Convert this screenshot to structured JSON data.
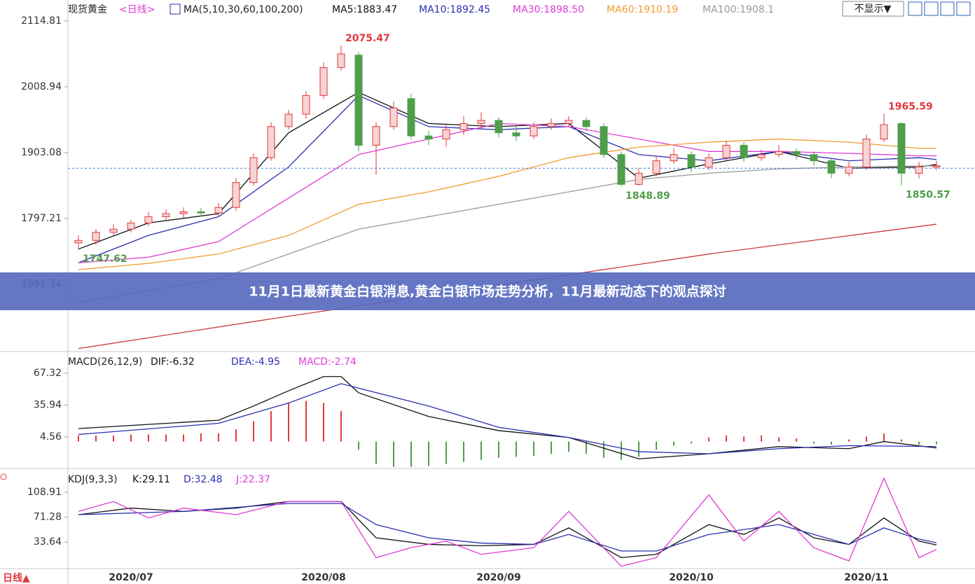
{
  "header": {
    "symbol": "现货黄金",
    "period": "<日线>",
    "indicator": "MA(5,10,30,60,100,200)"
  },
  "toolbar": {
    "hide_button": "不显示▼"
  },
  "footer": {
    "period_switch": "日线▲"
  },
  "banner": "11月1日最新黄金白银消息,黄金白银市场走势分析，11月最新动态下的观点探讨",
  "chart_data": [
    {
      "type": "candlestick",
      "categories": [
        null,
        null,
        null,
        "2020/07",
        null,
        null,
        null,
        null,
        null,
        null,
        null,
        null,
        null,
        null,
        "2020/08",
        null,
        null,
        null,
        null,
        null,
        null,
        null,
        null,
        null,
        "2020/09",
        null,
        null,
        null,
        null,
        null,
        null,
        null,
        null,
        null,
        null,
        "2020/10",
        null,
        null,
        null,
        null,
        null,
        null,
        null,
        null,
        null,
        "2020/11",
        null,
        null,
        null,
        null
      ],
      "open": [
        1758,
        1762,
        1775,
        1780,
        1790,
        1800,
        1805,
        1808,
        1806,
        1815,
        1855,
        1895,
        1945,
        1965,
        1995,
        2040,
        2060,
        1915,
        1945,
        1990,
        1930,
        1925,
        1940,
        1950,
        1955,
        1935,
        1930,
        1945,
        1950,
        1955,
        1945,
        1900,
        1852,
        1870,
        1890,
        1900,
        1880,
        1895,
        1915,
        1895,
        1900,
        1905,
        1900,
        1890,
        1870,
        1880,
        1925,
        1950,
        1870,
        1880
      ],
      "high": [
        1770,
        1780,
        1788,
        1795,
        1808,
        1812,
        1815,
        1814,
        1822,
        1862,
        1902,
        1952,
        1972,
        2002,
        2048,
        2075.47,
        2065,
        1952,
        1985,
        1998,
        1938,
        1948,
        1962,
        1968,
        1960,
        1945,
        1952,
        1958,
        1962,
        1960,
        1950,
        1905,
        1878,
        1898,
        1910,
        1905,
        1902,
        1922,
        1920,
        1908,
        1915,
        1910,
        1905,
        1895,
        1888,
        1932,
        1965.59,
        1952,
        1888,
        1890
      ],
      "low": [
        1747.62,
        1755,
        1770,
        1775,
        1785,
        1795,
        1798,
        1800,
        1800,
        1810,
        1850,
        1890,
        1940,
        1958,
        1990,
        2035,
        1905,
        1868,
        1940,
        1925,
        1915,
        1912,
        1932,
        1942,
        1928,
        1922,
        1925,
        1940,
        1945,
        1938,
        1895,
        1848.89,
        1850,
        1865,
        1885,
        1872,
        1875,
        1890,
        1888,
        1890,
        1895,
        1892,
        1882,
        1862,
        1865,
        1875,
        1920,
        1850.57,
        1862,
        1875
      ],
      "close": [
        1762,
        1775,
        1780,
        1790,
        1800,
        1805,
        1808,
        1806,
        1815,
        1855,
        1895,
        1945,
        1965,
        1995,
        2040,
        2062,
        1915,
        1945,
        1975,
        1930,
        1925,
        1940,
        1950,
        1955,
        1935,
        1930,
        1945,
        1950,
        1955,
        1945,
        1900,
        1852,
        1870,
        1890,
        1900,
        1880,
        1895,
        1915,
        1895,
        1900,
        1905,
        1900,
        1890,
        1870,
        1880,
        1925,
        1948,
        1870,
        1880,
        1882
      ],
      "up_color": "#e0393e",
      "down_color": "#4f9e4a",
      "labeled_highs": [
        15,
        46
      ],
      "labeled_lows": [
        0,
        31,
        47
      ],
      "price_line": 1878,
      "price_line_color": "#3b7bd8",
      "ylim": [
        1585.47,
        2148.62
      ],
      "yticks": [
        2114.81,
        2008.94,
        1903.08,
        1797.21,
        1691.34
      ],
      "series": [
        {
          "name": "MA5:1883.47",
          "color": "#111111",
          "x": [
            0,
            4,
            8,
            12,
            16,
            20,
            24,
            28,
            32,
            36,
            40,
            44,
            48,
            49
          ],
          "values": [
            1748,
            1790,
            1805,
            1935,
            2000,
            1950,
            1945,
            1950,
            1862,
            1885,
            1905,
            1878,
            1880,
            1884
          ]
        },
        {
          "name": "MA10:1892.45",
          "color": "#2b2fb3",
          "x": [
            0,
            4,
            8,
            12,
            16,
            20,
            24,
            28,
            32,
            36,
            40,
            44,
            48,
            49
          ],
          "values": [
            1726,
            1770,
            1800,
            1880,
            1995,
            1945,
            1940,
            1945,
            1900,
            1890,
            1905,
            1890,
            1895,
            1892
          ]
        },
        {
          "name": "MA30:1898.50",
          "color": "#e03ad8",
          "x": [
            0,
            4,
            8,
            12,
            16,
            20,
            24,
            28,
            32,
            36,
            40,
            44,
            48,
            49
          ],
          "values": [
            1726,
            1735,
            1760,
            1830,
            1900,
            1925,
            1950,
            1945,
            1925,
            1905,
            1905,
            1902,
            1898,
            1898
          ]
        },
        {
          "name": "MA60:1910.19",
          "color": "#f39a2c",
          "x": [
            0,
            4,
            8,
            12,
            16,
            20,
            24,
            28,
            32,
            36,
            40,
            44,
            48,
            49
          ],
          "values": [
            1715,
            1725,
            1740,
            1770,
            1820,
            1840,
            1865,
            1895,
            1912,
            1920,
            1925,
            1920,
            1910,
            1910
          ]
        },
        {
          "name": "MA100:1908.1",
          "color": "#999999",
          "x": [
            0,
            8,
            12,
            16,
            20,
            24,
            28,
            32,
            36,
            40,
            44,
            49
          ],
          "values": [
            1662,
            1700,
            1740,
            1780,
            1800,
            1820,
            1840,
            1860,
            1870,
            1877,
            1880,
            1882
          ]
        },
        {
          "color": "#cc3a3a",
          "x": [
            0,
            12,
            24,
            36,
            49
          ],
          "values": [
            1588,
            1640,
            1690,
            1740,
            1788
          ]
        }
      ]
    },
    {
      "type": "bar",
      "title": "MACD(26,12,9)",
      "histogram_name": "MACD:-2.74",
      "values": [
        6,
        6,
        6,
        7,
        7,
        7,
        7,
        8,
        8,
        12,
        20,
        30,
        38,
        40,
        38,
        30,
        -8,
        -22,
        -25,
        -25,
        -24,
        -22,
        -20,
        -18,
        -16,
        -15,
        -14,
        -12,
        -10,
        -12,
        -16,
        -18,
        -15,
        -8,
        -4,
        -2,
        4,
        6,
        5,
        6,
        4,
        3,
        -2,
        -3,
        2,
        5,
        8,
        2,
        -3,
        -2.74
      ],
      "up_color": "#e0393e",
      "down_color": "#4f9e4a",
      "ylim": [
        -25.8,
        86.6
      ],
      "yticks": [
        67.32,
        35.94,
        4.56
      ],
      "series": [
        {
          "name": "DIF:-6.32",
          "color": "#111111",
          "x": [
            0,
            8,
            10,
            12,
            14,
            15,
            16,
            20,
            24,
            28,
            32,
            36,
            40,
            44,
            46,
            49
          ],
          "values": [
            12.8,
            21,
            35,
            50,
            64,
            64,
            48,
            24.7,
            10.8,
            4,
            -17,
            -12,
            -5,
            -7,
            0,
            -6.32
          ]
        },
        {
          "name": "DEA:-4.95",
          "color": "#2b2fb3",
          "x": [
            0,
            8,
            12,
            15,
            20,
            24,
            28,
            32,
            36,
            40,
            44,
            49
          ],
          "values": [
            7,
            18,
            38,
            57,
            35,
            14,
            4,
            -10,
            -12,
            -7,
            -4,
            -4.95
          ]
        }
      ]
    },
    {
      "type": "line",
      "title": "KDJ(9,3,3)",
      "ylim": [
        -4.5,
        141.8
      ],
      "yticks": [
        108.91,
        71.28,
        33.64
      ],
      "series": [
        {
          "name": "K:29.11",
          "color": "#111111",
          "x": [
            0,
            3,
            6,
            9,
            12,
            15,
            17,
            20,
            23,
            26,
            28,
            31,
            33,
            36,
            38,
            40,
            42,
            44,
            46,
            48,
            49
          ],
          "values": [
            75,
            85,
            80,
            85,
            95,
            95,
            40,
            30,
            28,
            30,
            55,
            10,
            15,
            60,
            45,
            70,
            40,
            30,
            70,
            35,
            29.11
          ]
        },
        {
          "name": "D:32.48",
          "color": "#2b2fb3",
          "x": [
            0,
            6,
            12,
            15,
            17,
            20,
            23,
            26,
            28,
            31,
            33,
            36,
            40,
            42,
            44,
            46,
            48,
            49
          ],
          "values": [
            75,
            80,
            92,
            92,
            60,
            40,
            32,
            30,
            45,
            20,
            20,
            45,
            60,
            45,
            30,
            55,
            38,
            32.48
          ]
        },
        {
          "name": "J:22.37",
          "color": "#e03ad8",
          "x": [
            0,
            2,
            4,
            6,
            9,
            12,
            15,
            17,
            19,
            21,
            23,
            26,
            28,
            31,
            33,
            36,
            38,
            40,
            42,
            44,
            46,
            48,
            49
          ],
          "values": [
            80,
            95,
            70,
            85,
            75,
            95,
            95,
            10,
            25,
            35,
            15,
            25,
            80,
            -3,
            10,
            105,
            35,
            80,
            25,
            5,
            130,
            10,
            22.37
          ]
        }
      ]
    }
  ]
}
